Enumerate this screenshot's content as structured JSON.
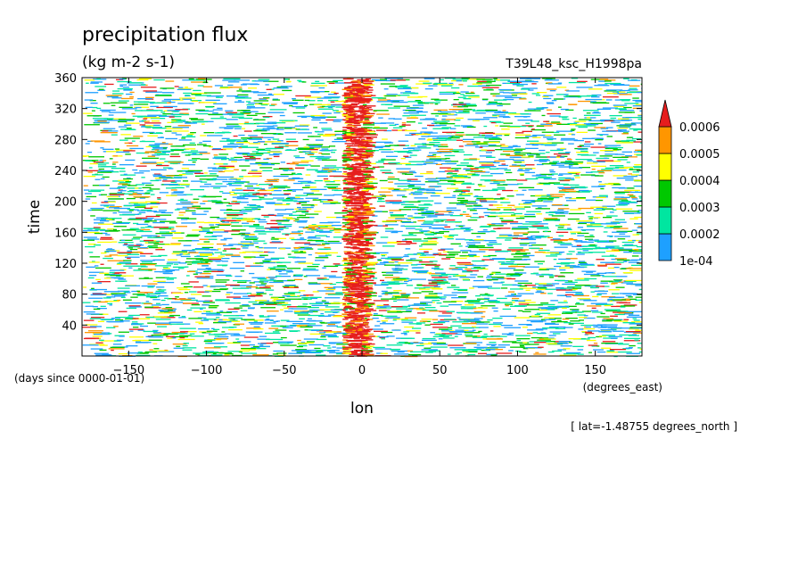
{
  "chart_data": {
    "type": "heatmap",
    "title": "precipitation flux",
    "units": "(kg m-2 s-1)",
    "run_label": "T39L48_ksc_H1998pa",
    "xlabel": "lon",
    "ylabel": "time",
    "x_units": "(degrees_east)",
    "y_units": "(days since 0000-01-01)",
    "footnote": "[ lat=-1.48755 degrees_north ]",
    "xlim": [
      -180,
      180
    ],
    "ylim": [
      0,
      360
    ],
    "x_ticks": [
      {
        "value": -150,
        "label": "−150"
      },
      {
        "value": -100,
        "label": "−100"
      },
      {
        "value": -50,
        "label": "−50"
      },
      {
        "value": 0,
        "label": "0"
      },
      {
        "value": 50,
        "label": "50"
      },
      {
        "value": 100,
        "label": "100"
      },
      {
        "value": 150,
        "label": "150"
      }
    ],
    "y_ticks": [
      {
        "value": 40,
        "label": "40"
      },
      {
        "value": 80,
        "label": "80"
      },
      {
        "value": 120,
        "label": "120"
      },
      {
        "value": 160,
        "label": "160"
      },
      {
        "value": 200,
        "label": "200"
      },
      {
        "value": 240,
        "label": "240"
      },
      {
        "value": 280,
        "label": "280"
      },
      {
        "value": 320,
        "label": "320"
      },
      {
        "value": 360,
        "label": "360"
      }
    ],
    "colorbar": {
      "levels": [
        "1e-04",
        "0.0002",
        "0.0003",
        "0.0004",
        "0.0005",
        "0.0006"
      ],
      "colors": [
        "#1ea0ff",
        "#00e6a0",
        "#00c800",
        "#ffff00",
        "#ff9600",
        "#e61e1e"
      ],
      "extend": "max"
    },
    "convective_band": {
      "center_lon": -5,
      "half_width_lon": 8
    },
    "grid": false
  }
}
